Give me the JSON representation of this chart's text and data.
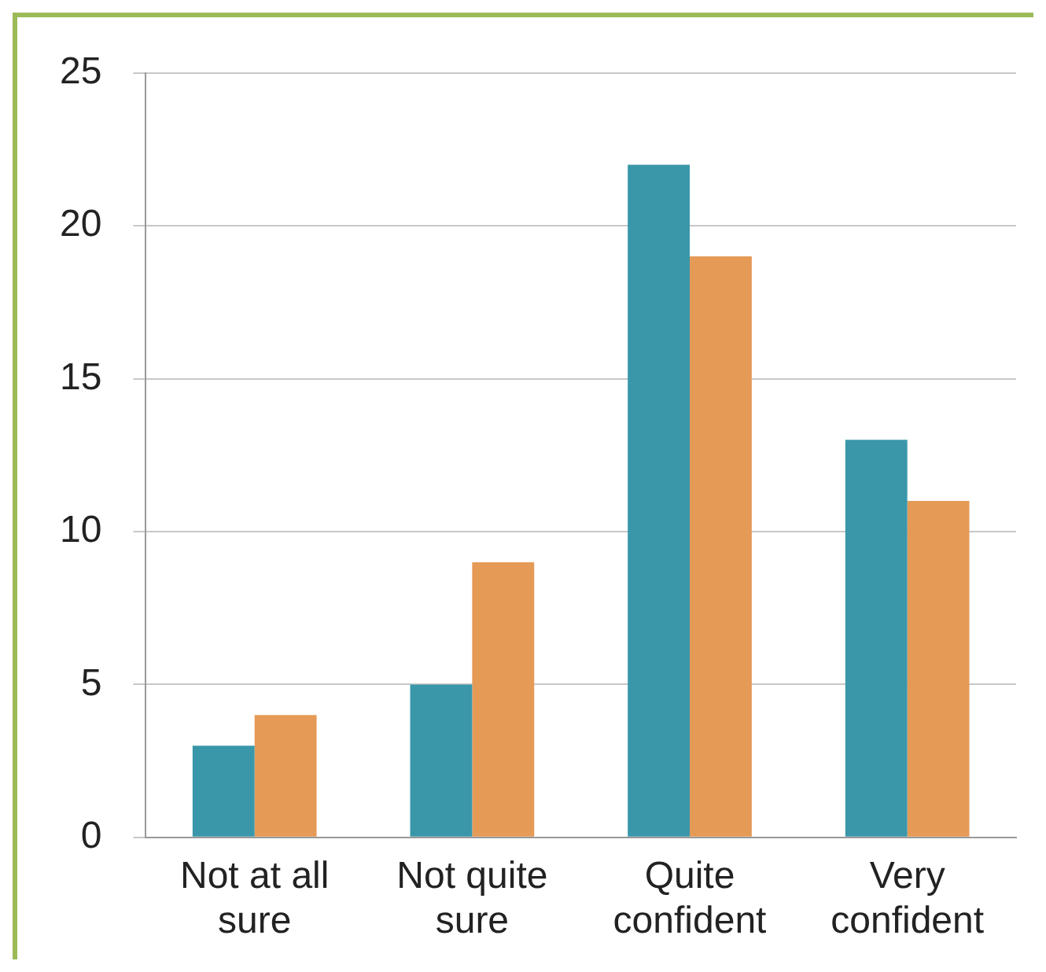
{
  "chart_data": {
    "type": "bar",
    "categories": [
      "Not at all sure",
      "Not quite sure",
      "Quite confident",
      "Very confident"
    ],
    "series": [
      {
        "color": "#3a97aa",
        "values": [
          3,
          5,
          22,
          13
        ]
      },
      {
        "color": "#e59a56",
        "values": [
          4,
          9,
          19,
          11
        ]
      }
    ],
    "ylim": [
      0,
      25
    ],
    "yticks": [
      0,
      5,
      10,
      15,
      20,
      25
    ],
    "grid": "y"
  }
}
